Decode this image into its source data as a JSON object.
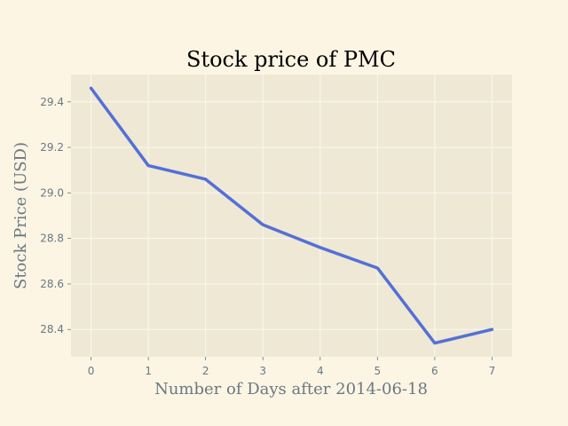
{
  "chart_data": {
    "type": "line",
    "title": "Stock price of PMC",
    "xlabel": "Number of Days after 2014-06-18",
    "ylabel": "Stock Price (USD)",
    "x": [
      0,
      1,
      2,
      3,
      4,
      5,
      6,
      7
    ],
    "series": [
      {
        "values": [
          29.46,
          29.12,
          29.06,
          28.86,
          28.76,
          28.67,
          28.34,
          28.4
        ]
      }
    ],
    "xlim": [
      -0.35,
      7.35
    ],
    "ylim": [
      28.28,
      29.52
    ],
    "xticks": [
      0,
      1,
      2,
      3,
      4,
      5,
      6,
      7
    ],
    "xtick_labels": [
      "0",
      "1",
      "2",
      "3",
      "4",
      "5",
      "6",
      "7"
    ],
    "yticks": [
      28.4,
      28.6,
      28.8,
      29.0,
      29.2,
      29.4
    ],
    "ytick_labels": [
      "28.4",
      "28.6",
      "28.8",
      "29.0",
      "29.2",
      "29.4"
    ],
    "grid": true,
    "colors": {
      "line": "#5470d6",
      "plot_background": "#eee8d5",
      "figure_background": "#fcf5e3",
      "grid": "#fbf8ee",
      "text": "#6a7883"
    }
  }
}
